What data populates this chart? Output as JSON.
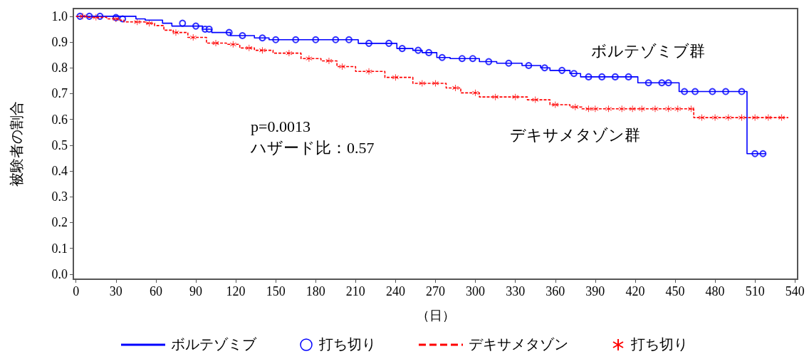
{
  "chart_data": {
    "type": "step",
    "xlabel": "（日）",
    "ylabel": "被験者の割合",
    "xlim": [
      -2,
      542
    ],
    "xticks": [
      0,
      30,
      60,
      90,
      120,
      150,
      180,
      210,
      240,
      270,
      300,
      330,
      360,
      390,
      420,
      450,
      480,
      510,
      540
    ],
    "ylim": [
      -0.02,
      1.03
    ],
    "yticks": [
      {
        "value": 0,
        "label": "0.0"
      },
      0.1,
      0.2,
      0.3,
      0.4,
      0.5,
      0.6,
      0.7,
      0.8,
      0.9,
      {
        "value": 1,
        "label": "1.0"
      }
    ],
    "grid": false,
    "legend": "bottom",
    "annotations": [
      "ボルテゾミブ群",
      "デキサメタゾン群",
      "p=0.0013",
      "ハザード比：0.57"
    ],
    "series": [
      {
        "name": "ボルテゾミブ",
        "color": "#0000ff",
        "marker": "none",
        "line_style": "solid",
        "x": [
          0,
          45,
          52,
          65,
          72,
          95,
          102,
          116,
          134,
          145,
          212,
          241,
          253,
          260,
          271,
          281,
          303,
          316,
          335,
          349,
          356,
          371,
          379,
          422,
          453,
          504,
          518
        ],
        "values": [
          1.0,
          0.99,
          0.985,
          0.973,
          0.962,
          0.95,
          0.937,
          0.925,
          0.916,
          0.909,
          0.895,
          0.875,
          0.868,
          0.859,
          0.84,
          0.836,
          0.824,
          0.818,
          0.809,
          0.8,
          0.79,
          0.778,
          0.765,
          0.742,
          0.708,
          0.467,
          0.467
        ]
      },
      {
        "name": "打ち切り",
        "type": "scatter",
        "color": "#0000ff",
        "marker": "circle",
        "x": [
          3,
          10,
          18,
          30,
          35,
          80,
          90,
          97,
          100,
          115,
          125,
          140,
          150,
          165,
          180,
          195,
          205,
          220,
          235,
          245,
          257,
          265,
          275,
          290,
          298,
          310,
          325,
          340,
          352,
          365,
          374,
          385,
          395,
          405,
          415,
          430,
          440,
          445,
          457,
          465,
          478,
          488,
          500,
          510,
          516
        ],
        "values": [
          1.0,
          1.0,
          1.0,
          0.995,
          0.99,
          0.973,
          0.962,
          0.95,
          0.95,
          0.937,
          0.925,
          0.916,
          0.909,
          0.909,
          0.909,
          0.909,
          0.909,
          0.895,
          0.895,
          0.875,
          0.868,
          0.859,
          0.84,
          0.836,
          0.836,
          0.824,
          0.818,
          0.809,
          0.8,
          0.79,
          0.778,
          0.765,
          0.765,
          0.765,
          0.765,
          0.742,
          0.742,
          0.742,
          0.708,
          0.708,
          0.708,
          0.708,
          0.708,
          0.467,
          0.467
        ]
      },
      {
        "name": "デキサメタゾン",
        "color": "#ff0000",
        "marker": "none",
        "line_style": "dashed",
        "x": [
          0,
          9,
          23,
          33,
          36,
          52,
          59,
          66,
          73,
          84,
          98,
          113,
          123,
          134,
          148,
          169,
          184,
          196,
          210,
          232,
          253,
          278,
          289,
          303,
          339,
          356,
          371,
          380,
          464,
          535
        ],
        "values": [
          1.0,
          0.996,
          0.99,
          0.985,
          0.978,
          0.973,
          0.964,
          0.946,
          0.937,
          0.918,
          0.896,
          0.891,
          0.877,
          0.868,
          0.857,
          0.836,
          0.827,
          0.805,
          0.786,
          0.763,
          0.74,
          0.722,
          0.703,
          0.687,
          0.676,
          0.657,
          0.648,
          0.641,
          0.607,
          0.607
        ]
      },
      {
        "name": "打ち切り",
        "type": "scatter",
        "color": "#ff0000",
        "marker": "cross",
        "x": [
          5,
          15,
          30,
          46,
          55,
          75,
          88,
          105,
          118,
          130,
          140,
          160,
          175,
          190,
          200,
          220,
          240,
          260,
          270,
          285,
          300,
          315,
          330,
          345,
          360,
          375,
          385,
          390,
          400,
          410,
          418,
          425,
          435,
          445,
          452,
          462,
          470,
          480,
          490,
          500,
          510,
          520,
          530
        ],
        "values": [
          1.0,
          0.996,
          0.99,
          0.978,
          0.973,
          0.937,
          0.918,
          0.896,
          0.891,
          0.877,
          0.868,
          0.857,
          0.836,
          0.827,
          0.805,
          0.786,
          0.763,
          0.74,
          0.74,
          0.722,
          0.703,
          0.687,
          0.687,
          0.676,
          0.657,
          0.648,
          0.641,
          0.641,
          0.641,
          0.641,
          0.641,
          0.641,
          0.641,
          0.641,
          0.641,
          0.641,
          0.607,
          0.607,
          0.607,
          0.607,
          0.607,
          0.607,
          0.607
        ]
      }
    ]
  }
}
